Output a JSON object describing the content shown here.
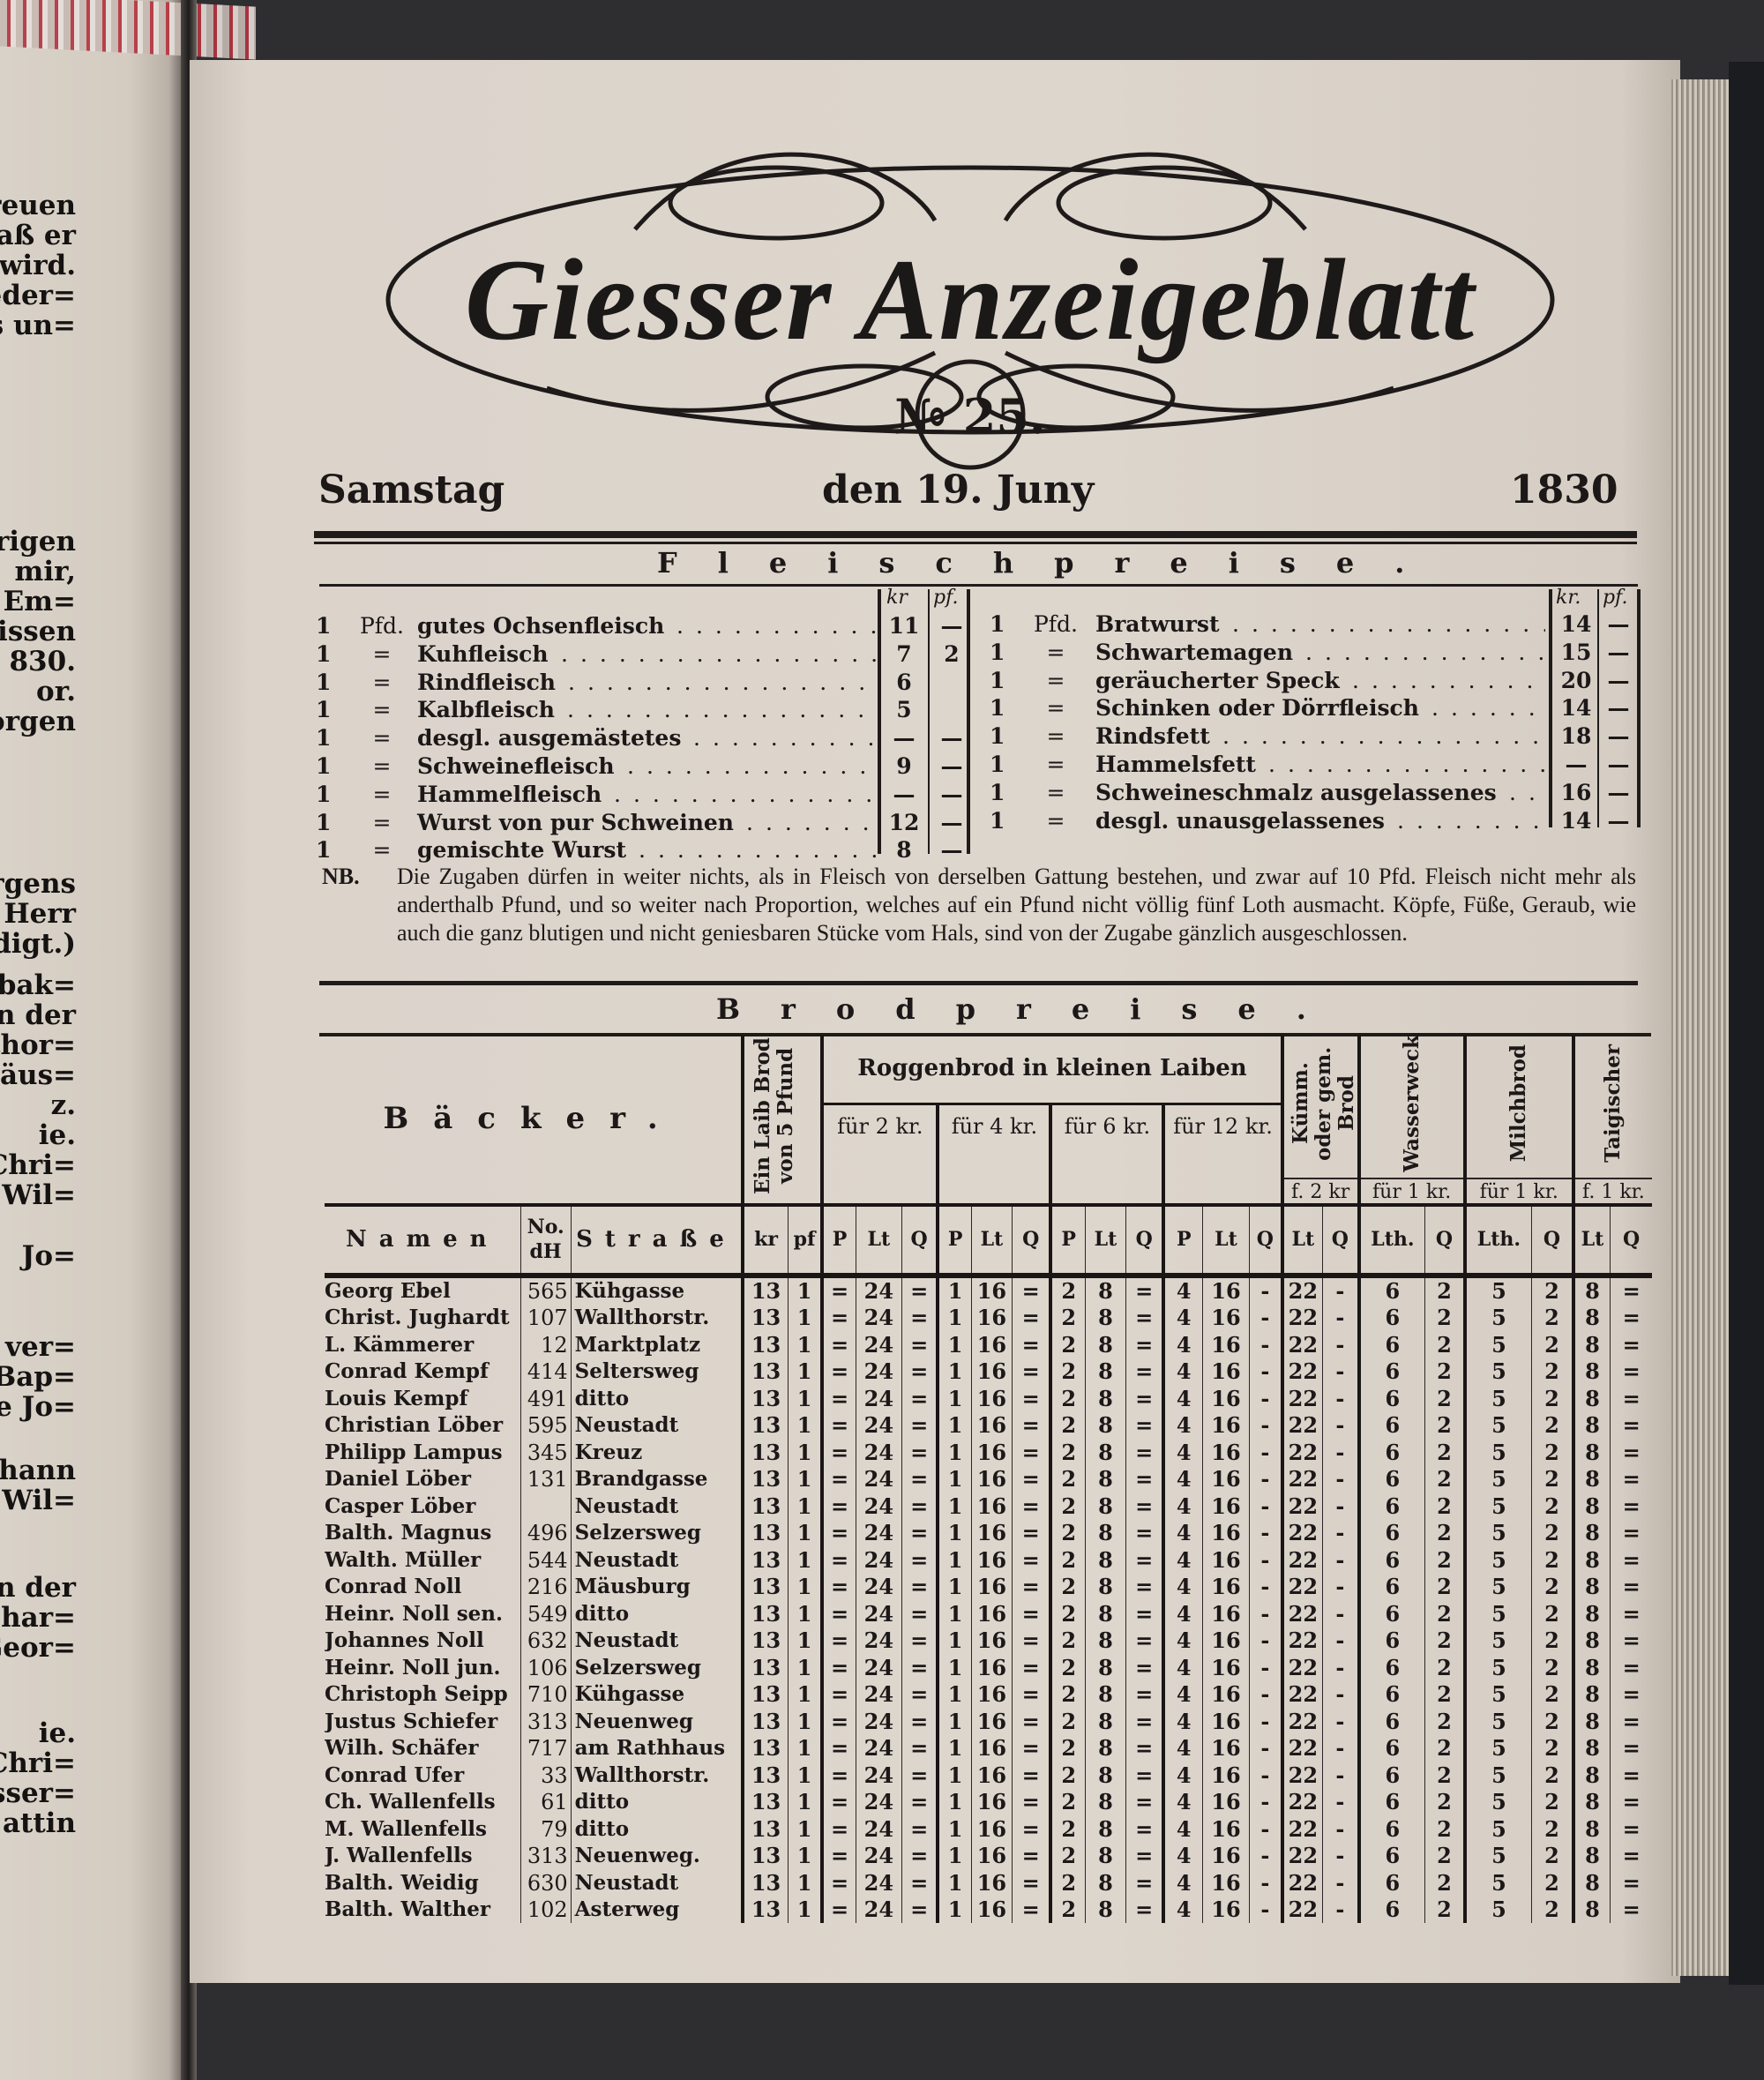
{
  "left_page": {
    "groups": [
      [
        "freuen",
        "daß er",
        "wird.",
        "ieder=",
        "is un="
      ],
      [
        "origen",
        "mir,",
        "r Em=",
        "Wissen",
        "830.",
        "or.",
        "orgen"
      ],
      [
        "orgens",
        "Herr",
        "edigt.)"
      ],
      [
        "schbak=",
        "in der",
        "llthor=",
        "Näus=",
        "z.",
        "ie.",
        "Chri=",
        "Wil="
      ],
      [
        "Jo="
      ],
      [
        "n ver=",
        "Bap=",
        "e Jo="
      ],
      [
        "ohann",
        "Wil="
      ],
      [
        "n der",
        "Char=",
        "Geor="
      ],
      [
        "ie.",
        "Chri=",
        "asser=",
        "attin"
      ]
    ]
  },
  "masthead": {
    "title": "Giesser Anzeigeblatt",
    "issue": "№ 25.",
    "weekday": "Samstag",
    "date": "den 19. Juny",
    "year": "1830"
  },
  "meat": {
    "title": "Fleischpreise.",
    "col_kr_left": "kr",
    "col_pf": "pf.",
    "col_kr_right": "kr.",
    "left": [
      {
        "qty": "1",
        "unit": "Pfd.",
        "item": "gutes Ochsenfleisch",
        "kr": "11",
        "pf": "—"
      },
      {
        "qty": "1",
        "unit": "=",
        "item": "Kuhfleisch",
        "kr": "7",
        "pf": "2"
      },
      {
        "qty": "1",
        "unit": "=",
        "item": "Rindfleisch",
        "kr": "6",
        "pf": ""
      },
      {
        "qty": "1",
        "unit": "=",
        "item": "Kalbfleisch",
        "kr": "5",
        "pf": ""
      },
      {
        "qty": "1",
        "unit": "=",
        "item": "desgl. ausgemästetes",
        "kr": "—",
        "pf": "—"
      },
      {
        "qty": "1",
        "unit": "=",
        "item": "Schweinefleisch",
        "kr": "9",
        "pf": "—"
      },
      {
        "qty": "1",
        "unit": "=",
        "item": "Hammelfleisch",
        "kr": "—",
        "pf": "—"
      },
      {
        "qty": "1",
        "unit": "=",
        "item": "Wurst von pur Schweinen",
        "kr": "12",
        "pf": "—"
      },
      {
        "qty": "1",
        "unit": "=",
        "item": "gemischte Wurst",
        "kr": "8",
        "pf": "—"
      }
    ],
    "right": [
      {
        "qty": "1",
        "unit": "Pfd.",
        "item": "Bratwurst",
        "kr": "14",
        "pf": "—"
      },
      {
        "qty": "1",
        "unit": "=",
        "item": "Schwartemagen",
        "kr": "15",
        "pf": "—"
      },
      {
        "qty": "1",
        "unit": "=",
        "item": "geräucherter Speck",
        "kr": "20",
        "pf": "—"
      },
      {
        "qty": "1",
        "unit": "=",
        "item": "Schinken oder Dörrfleisch",
        "kr": "14",
        "pf": "—"
      },
      {
        "qty": "1",
        "unit": "=",
        "item": "Rindsfett",
        "kr": "18",
        "pf": "—"
      },
      {
        "qty": "1",
        "unit": "=",
        "item": "Hammelsfett",
        "kr": "—",
        "pf": "—"
      },
      {
        "qty": "1",
        "unit": "=",
        "item": "Schweineschmalz ausgelassenes",
        "kr": "16",
        "pf": "—"
      },
      {
        "qty": "1",
        "unit": "=",
        "item": "desgl. unausgelassenes",
        "kr": "14",
        "pf": "—"
      }
    ],
    "nb_label": "NB.",
    "nb_text": "Die Zugaben dürfen in weiter nichts, als in Fleisch von derselben Gattung bestehen, und zwar auf 10 Pfd. Fleisch nicht mehr als anderthalb Pfund, und so weiter nach Proportion, welches auf ein Pfund nicht völlig fünf Loth ausmacht. Köpfe, Füße, Geraub, wie auch die ganz blutigen und nicht geniesbaren Stücke vom Hals, sind von der Zugabe gänzlich ausgeschlossen."
  },
  "bread": {
    "title": "Brodpreise.",
    "header": {
      "baker": "Bäcker.",
      "loaf": "Ein Laib Brod von 5 Pfund",
      "rye": "Roggenbrod in kleinen Laiben",
      "rye_sizes": [
        "für 2 kr.",
        "für 4 kr.",
        "für 6 kr.",
        "für 12 kr."
      ],
      "kuemm": "Kümm. oder gem. Brod",
      "kuemm_price": "f. 2 kr",
      "wasserweck": "Wasserweck",
      "wasserweck_price": "für 1 kr.",
      "milchbrod": "Milchbrod",
      "milchbrod_price": "für 1 kr.",
      "last": "Taigischer",
      "last_price": "f. 1 kr."
    },
    "subheader": [
      "Namen",
      "No. dH",
      "Straße",
      "kr",
      "pf",
      "P",
      "Lt",
      "Q",
      "P",
      "Lt",
      "Q",
      "P",
      "Lt",
      "Q",
      "P",
      "Lt",
      "Q",
      "Lt",
      "Q",
      "Lth.",
      "Q",
      "Lth.",
      "Q",
      "Lt",
      "Q"
    ],
    "rows": [
      {
        "name": "Georg Ebel",
        "no": "565",
        "street": "Kühgasse"
      },
      {
        "name": "Christ. Jughardt",
        "no": "107",
        "street": "Wallthorstr."
      },
      {
        "name": "L. Kämmerer",
        "no": "12",
        "street": "Marktplatz"
      },
      {
        "name": "Conrad Kempf",
        "no": "414",
        "street": "Seltersweg"
      },
      {
        "name": "Louis Kempf",
        "no": "491",
        "street": "ditto"
      },
      {
        "name": "Christian Löber",
        "no": "595",
        "street": "Neustadt"
      },
      {
        "name": "Philipp Lampus",
        "no": "345",
        "street": "Kreuz"
      },
      {
        "name": "Daniel Löber",
        "no": "131",
        "street": "Brandgasse"
      },
      {
        "name": "Casper Löber",
        "no": "",
        "street": "Neustadt"
      },
      {
        "name": "Balth. Magnus",
        "no": "496",
        "street": "Selzersweg"
      },
      {
        "name": "Walth. Müller",
        "no": "544",
        "street": "Neustadt"
      },
      {
        "name": "Conrad Noll",
        "no": "216",
        "street": "Mäusburg"
      },
      {
        "name": "Heinr. Noll sen.",
        "no": "549",
        "street": "ditto"
      },
      {
        "name": "Johannes Noll",
        "no": "632",
        "street": "Neustadt"
      },
      {
        "name": "Heinr. Noll jun.",
        "no": "106",
        "street": "Selzersweg"
      },
      {
        "name": "Christoph Seipp",
        "no": "710",
        "street": "Kühgasse"
      },
      {
        "name": "Justus Schiefer",
        "no": "313",
        "street": "Neuenweg"
      },
      {
        "name": "Wilh. Schäfer",
        "no": "717",
        "street": "am Rathhaus"
      },
      {
        "name": "Conrad Ufer",
        "no": "33",
        "street": "Wallthorstr."
      },
      {
        "name": "Ch. Wallenfells",
        "no": "61",
        "street": "ditto"
      },
      {
        "name": "M. Wallenfells",
        "no": "79",
        "street": "ditto"
      },
      {
        "name": "J. Wallenfells",
        "no": "313",
        "street": "Neuenweg."
      },
      {
        "name": "Balth. Weidig",
        "no": "630",
        "street": "Neustadt"
      },
      {
        "name": "Balth. Walther",
        "no": "102",
        "street": "Asterweg"
      }
    ],
    "prices": [
      "13",
      "1",
      "=",
      "24",
      "=",
      "1",
      "16",
      "=",
      "2",
      "8",
      "=",
      "4",
      "16",
      "-",
      "22",
      "-",
      "6",
      "2",
      "5",
      "2",
      "8",
      "="
    ]
  },
  "colors": {
    "paper": "#ddd6cd",
    "ink": "#1c1818",
    "background": "#2e2e31"
  }
}
